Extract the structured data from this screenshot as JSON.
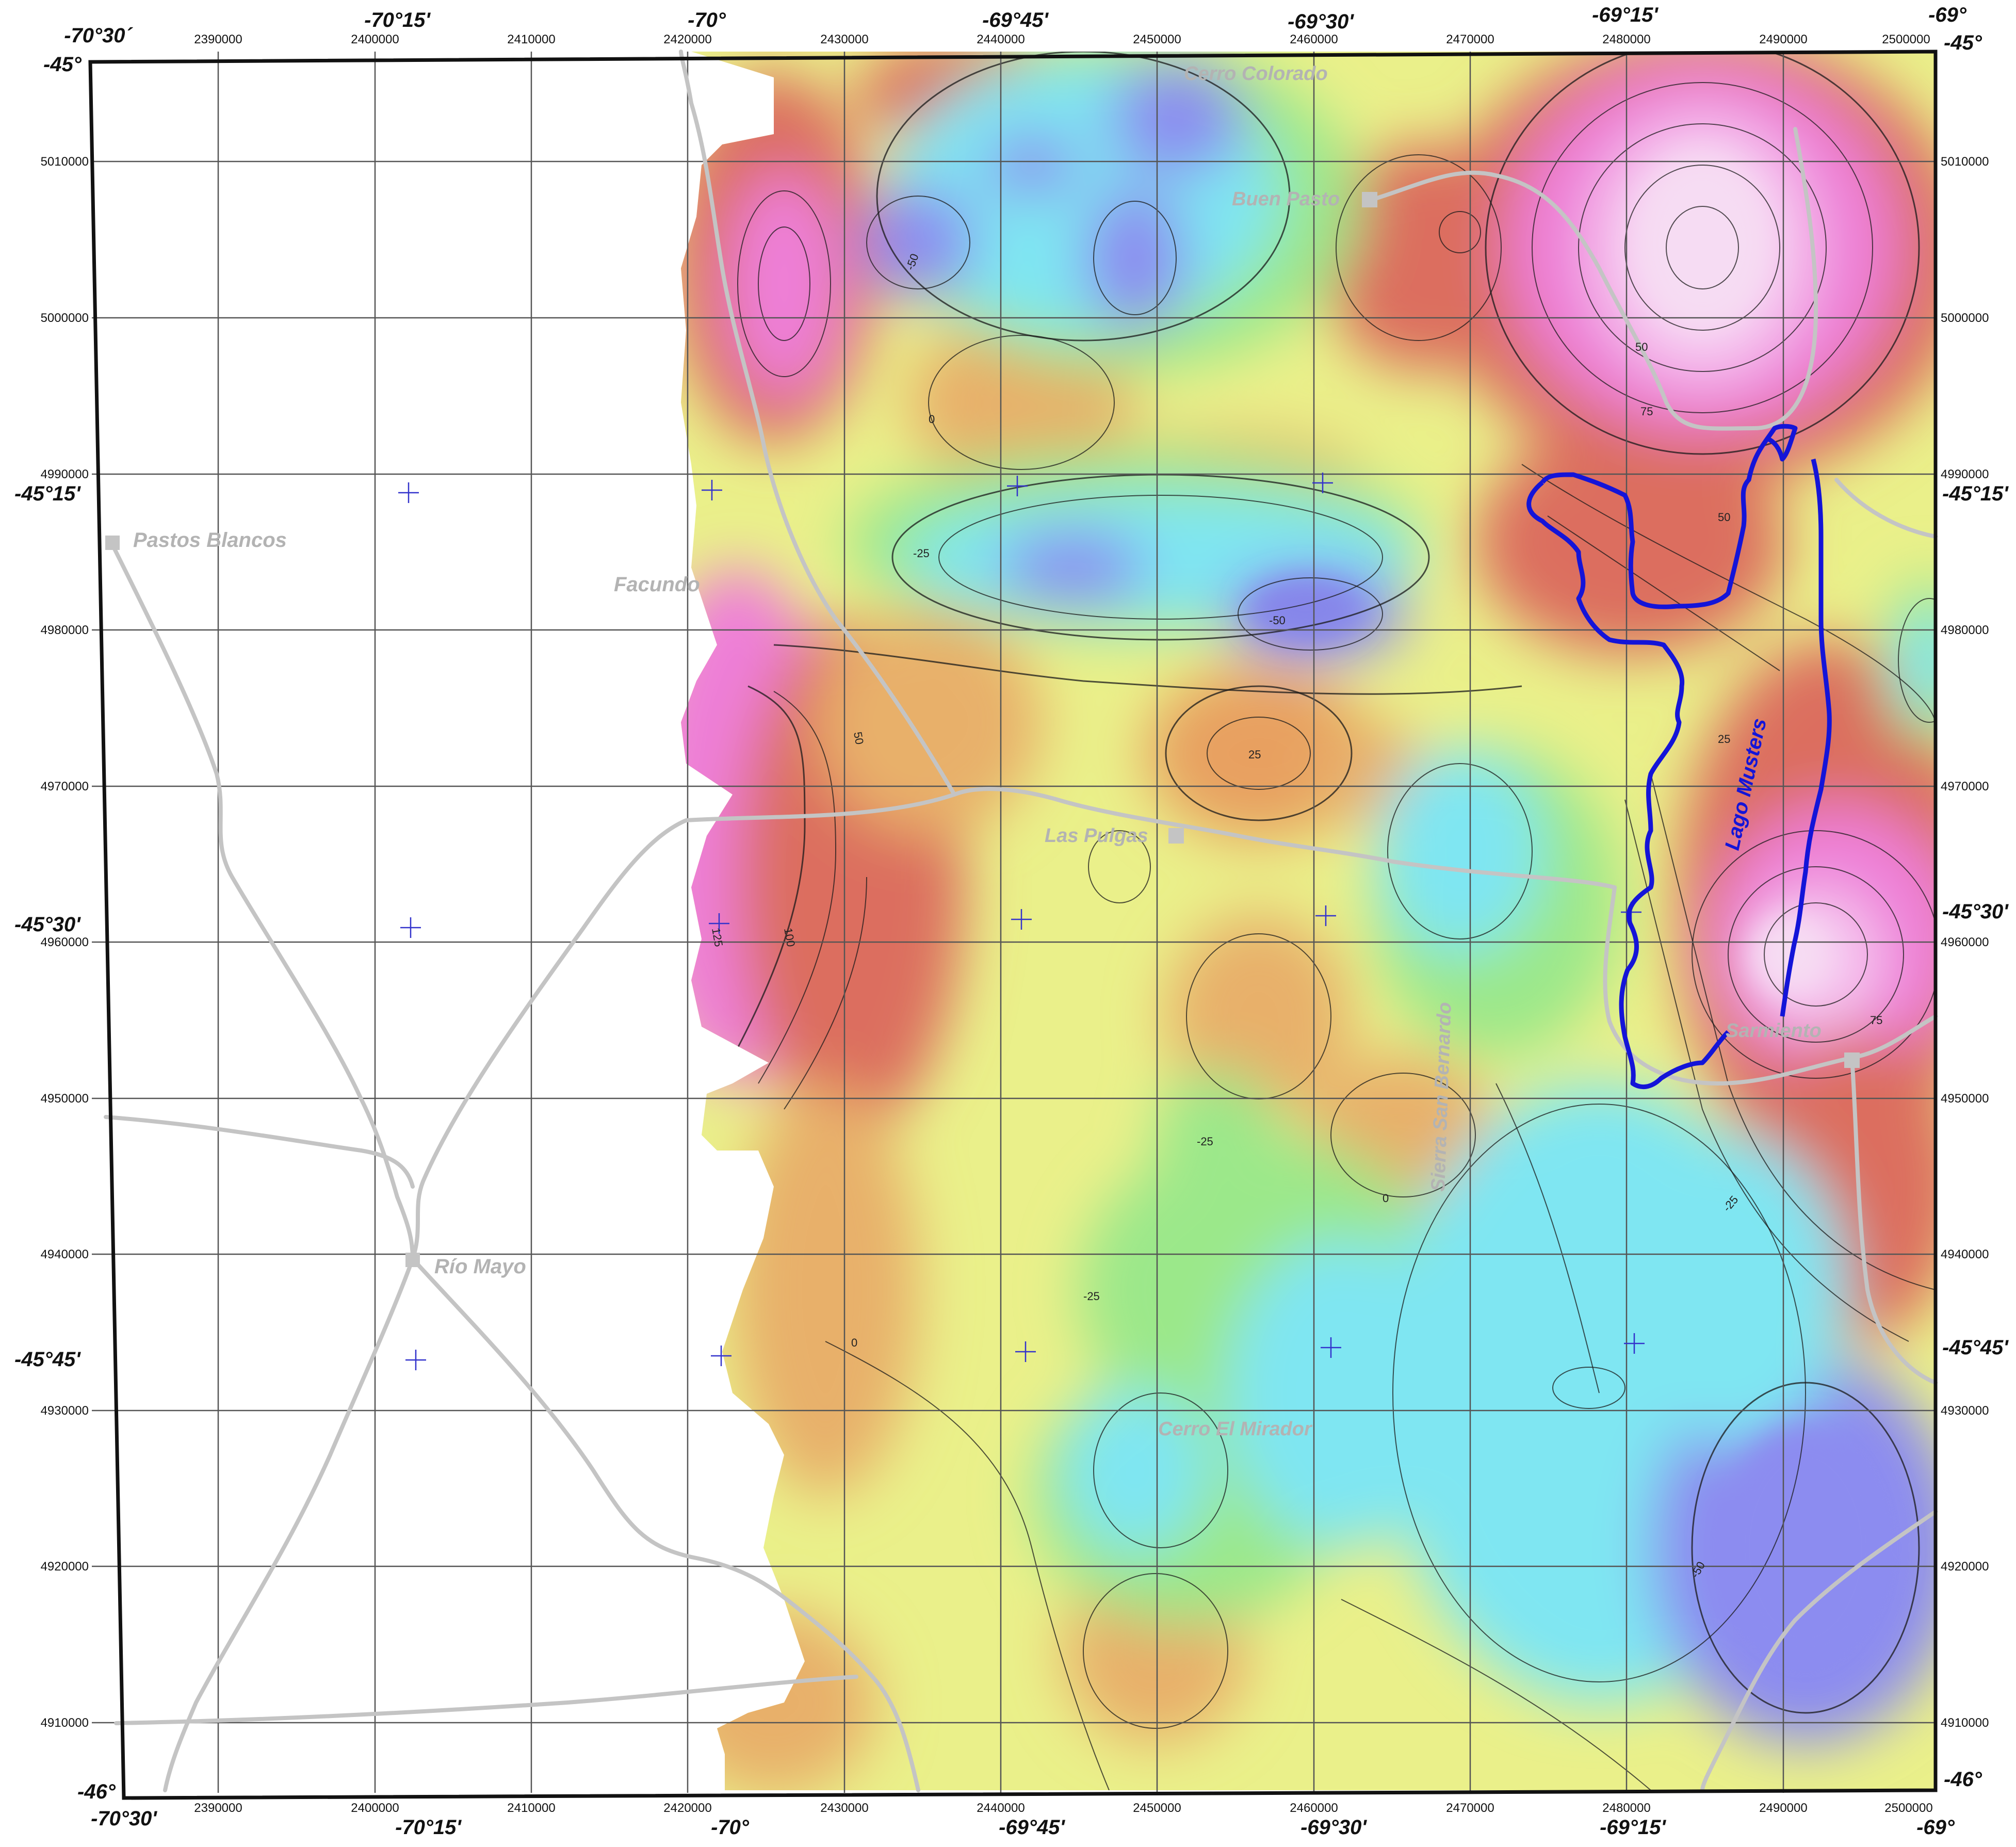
{
  "map": {
    "top_lon_labels": [
      "-70°30´",
      "-70°15'",
      "-70°",
      "-69°45'",
      "-69°30'",
      "-69°15'",
      "-69°"
    ],
    "bottom_lon_labels": [
      "-70°30'",
      "-70°15'",
      "-70°",
      "-69°45'",
      "-69°30'",
      "-69°15'",
      "-69°"
    ],
    "left_lat_labels": [
      "-45°",
      "-45°15'",
      "-45°30'",
      "-45°45'",
      "-46°"
    ],
    "right_lat_labels": [
      "-45°",
      "-45°15'",
      "-45°30'",
      "-45°45'",
      "-46°"
    ],
    "easting_labels": [
      "2390000",
      "2400000",
      "2410000",
      "2420000",
      "2430000",
      "2440000",
      "2450000",
      "2460000",
      "2470000",
      "2480000",
      "2490000",
      "2500000"
    ],
    "northing_labels": [
      "5010000",
      "5000000",
      "4990000",
      "4980000",
      "4970000",
      "4960000",
      "4950000",
      "4940000",
      "4930000",
      "4920000",
      "4910000"
    ],
    "places": {
      "pastos_blancos": "Pastos Blancos",
      "facundo": "Facundo",
      "rio_mayo": "Río Mayo",
      "buen_pasto": "Buen Pasto",
      "cerro_colorado": "Cerro Colorado",
      "las_pulgas": "Las Pulgas",
      "sierra_san_bernardo": "Sierra San Bernardo",
      "sarmiento": "Sarmiento",
      "cerro_el_mirador": "Cerro El Mirador"
    },
    "lake_label": "Lago Musters",
    "contour_labels": [
      "-50",
      "-25",
      "0",
      "25",
      "50",
      "75",
      "100",
      "125"
    ],
    "colors": {
      "frame": "#111111",
      "grid": "#555555",
      "road": "#c4c4c4",
      "lake": "#1414d8",
      "place_text": "#b3b3b3",
      "very_low": "#8c8cf0",
      "low": "#7fe6f2",
      "mid_low": "#9be88a",
      "mid": "#eaf08a",
      "mid_high": "#e8b06a",
      "high": "#dc6e5e",
      "very_high": "#ee7fd8",
      "peak": "#f6c8f0"
    }
  }
}
